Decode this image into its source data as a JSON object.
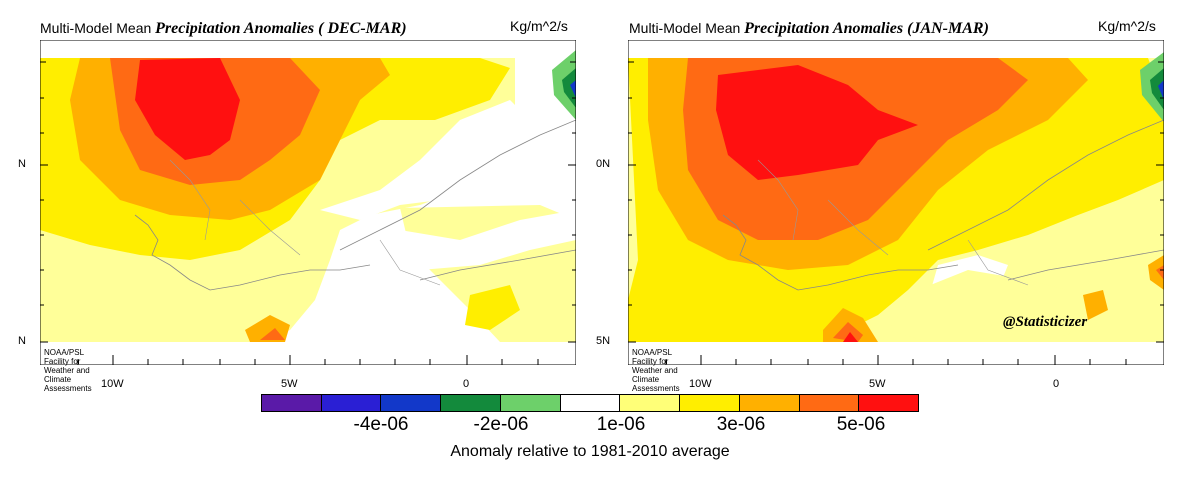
{
  "panels": [
    {
      "title_prefix": "Multi-Model Mean",
      "title_italic": "Precipitation Anomalies ( DEC-MAR)",
      "units": "Kg/m^2/s",
      "y_ticks": [
        "N",
        "N"
      ],
      "x_ticks": [
        "10W",
        "5W",
        "0"
      ],
      "credit": "NOAA/PSL Facility for Weather and Climate Assessments"
    },
    {
      "title_prefix": "Multi-Model Mean",
      "title_italic": "Precipitation Anomalies (JAN-MAR)",
      "units": "Kg/m^2/s",
      "y_ticks": [
        "0N",
        "5N"
      ],
      "x_ticks": [
        "10W",
        "5W",
        "0"
      ],
      "credit": "NOAA/PSL Facility for Weather and Climate Assessments",
      "watermark": "@Statisticizer"
    }
  ],
  "colorbar": {
    "colors": [
      "#5a1aa8",
      "#2a1fd4",
      "#1238c9",
      "#138a3c",
      "#6dd06a",
      "#ffffff",
      "#ffff78",
      "#ffee00",
      "#ffb000",
      "#ff6a14",
      "#ff1010"
    ],
    "tick_labels": [
      "-4e-06",
      "-2e-06",
      "1e-06",
      "3e-06",
      "5e-06"
    ],
    "caption": "Anomaly relative to 1981-2010 average"
  },
  "palette": {
    "pale_yellow": "#ffff99",
    "yellow": "#ffee00",
    "orange": "#ffb000",
    "dark_orange": "#ff6a14",
    "red": "#ff1010",
    "light_green": "#6dd06a",
    "green": "#138a3c",
    "blue": "#1238c9"
  }
}
